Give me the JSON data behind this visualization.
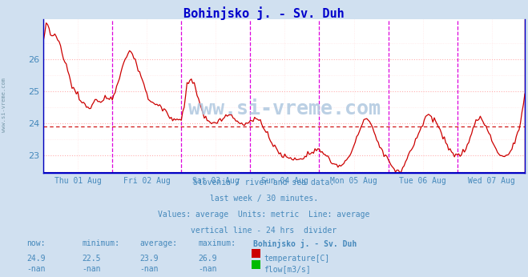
{
  "title": "Bohinjsko j. - Sv. Duh",
  "title_color": "#0000cc",
  "bg_color": "#d0e0f0",
  "plot_bg_color": "#ffffff",
  "grid_color_major": "#ffb0b0",
  "grid_color_minor": "#ffe0e0",
  "line_color": "#cc0000",
  "average_value": 23.9,
  "average_line_color": "#cc0000",
  "y_min": 22.45,
  "y_max": 27.25,
  "y_ticks": [
    23,
    24,
    25,
    26
  ],
  "xlabel_color": "#4488bb",
  "footer_color": "#4488bb",
  "watermark": "www.si-vreme.com",
  "footer_lines": [
    "Slovenia / river and sea data.",
    "last week / 30 minutes.",
    "Values: average  Units: metric  Line: average",
    "vertical line - 24 hrs  divider"
  ],
  "stats_headers": [
    "now:",
    "minimum:",
    "average:",
    "maximum:",
    "Bohinjsko j. - Sv. Duh"
  ],
  "stats_temp": [
    "24.9",
    "22.5",
    "23.9",
    "26.9"
  ],
  "stats_flow": [
    "-nan",
    "-nan",
    "-nan",
    "-nan"
  ],
  "temp_label": "temperature[C]",
  "flow_label": "flow[m3/s]",
  "temp_color": "#cc0000",
  "flow_color": "#00bb00",
  "x_tick_labels": [
    "Thu 01 Aug",
    "Fri 02 Aug",
    "Sat 03 Aug",
    "Sun 04 Aug",
    "Mon 05 Aug",
    "Tue 06 Aug",
    "Wed 07 Aug"
  ],
  "n_points": 336,
  "vline_color": "#dd00dd",
  "spine_color": "#0000cc",
  "keypoints": [
    [
      0,
      26.5
    ],
    [
      2,
      27.1
    ],
    [
      4,
      26.9
    ],
    [
      6,
      26.7
    ],
    [
      8,
      26.8
    ],
    [
      10,
      26.6
    ],
    [
      12,
      26.4
    ],
    [
      14,
      26.0
    ],
    [
      16,
      25.8
    ],
    [
      18,
      25.5
    ],
    [
      20,
      25.2
    ],
    [
      22,
      25.0
    ],
    [
      24,
      24.9
    ],
    [
      26,
      24.7
    ],
    [
      28,
      24.6
    ],
    [
      30,
      24.5
    ],
    [
      32,
      24.5
    ],
    [
      34,
      24.6
    ],
    [
      36,
      24.7
    ],
    [
      38,
      24.7
    ],
    [
      40,
      24.7
    ],
    [
      42,
      24.8
    ],
    [
      44,
      24.8
    ],
    [
      46,
      24.8
    ],
    [
      48,
      24.8
    ],
    [
      50,
      25.0
    ],
    [
      52,
      25.3
    ],
    [
      54,
      25.6
    ],
    [
      56,
      25.9
    ],
    [
      58,
      26.1
    ],
    [
      60,
      26.3
    ],
    [
      62,
      26.2
    ],
    [
      64,
      26.0
    ],
    [
      66,
      25.7
    ],
    [
      68,
      25.5
    ],
    [
      70,
      25.2
    ],
    [
      72,
      24.9
    ],
    [
      74,
      24.7
    ],
    [
      76,
      24.7
    ],
    [
      78,
      24.6
    ],
    [
      80,
      24.6
    ],
    [
      82,
      24.5
    ],
    [
      84,
      24.4
    ],
    [
      86,
      24.3
    ],
    [
      88,
      24.2
    ],
    [
      90,
      24.1
    ],
    [
      92,
      24.1
    ],
    [
      94,
      24.1
    ],
    [
      96,
      24.1
    ],
    [
      98,
      24.5
    ],
    [
      100,
      25.2
    ],
    [
      102,
      25.4
    ],
    [
      104,
      25.3
    ],
    [
      106,
      25.1
    ],
    [
      108,
      24.7
    ],
    [
      110,
      24.4
    ],
    [
      112,
      24.2
    ],
    [
      114,
      24.1
    ],
    [
      116,
      24.0
    ],
    [
      118,
      24.0
    ],
    [
      120,
      24.0
    ],
    [
      122,
      24.1
    ],
    [
      124,
      24.1
    ],
    [
      126,
      24.2
    ],
    [
      128,
      24.2
    ],
    [
      130,
      24.3
    ],
    [
      132,
      24.2
    ],
    [
      134,
      24.1
    ],
    [
      136,
      24.0
    ],
    [
      138,
      24.0
    ],
    [
      140,
      24.0
    ],
    [
      142,
      24.0
    ],
    [
      144,
      24.0
    ],
    [
      146,
      24.1
    ],
    [
      148,
      24.2
    ],
    [
      150,
      24.1
    ],
    [
      152,
      24.0
    ],
    [
      154,
      23.8
    ],
    [
      156,
      23.7
    ],
    [
      158,
      23.5
    ],
    [
      160,
      23.3
    ],
    [
      162,
      23.2
    ],
    [
      164,
      23.1
    ],
    [
      166,
      23.0
    ],
    [
      168,
      23.0
    ],
    [
      170,
      22.9
    ],
    [
      172,
      22.9
    ],
    [
      174,
      22.9
    ],
    [
      176,
      22.9
    ],
    [
      178,
      22.9
    ],
    [
      180,
      22.9
    ],
    [
      182,
      23.0
    ],
    [
      184,
      23.1
    ],
    [
      186,
      23.1
    ],
    [
      188,
      23.1
    ],
    [
      190,
      23.2
    ],
    [
      192,
      23.2
    ],
    [
      194,
      23.1
    ],
    [
      196,
      23.0
    ],
    [
      198,
      22.9
    ],
    [
      200,
      22.8
    ],
    [
      202,
      22.7
    ],
    [
      204,
      22.7
    ],
    [
      206,
      22.7
    ],
    [
      208,
      22.7
    ],
    [
      210,
      22.8
    ],
    [
      212,
      22.9
    ],
    [
      214,
      23.1
    ],
    [
      216,
      23.3
    ],
    [
      218,
      23.5
    ],
    [
      220,
      23.8
    ],
    [
      222,
      24.0
    ],
    [
      224,
      24.2
    ],
    [
      226,
      24.1
    ],
    [
      228,
      24.0
    ],
    [
      230,
      23.8
    ],
    [
      232,
      23.5
    ],
    [
      234,
      23.3
    ],
    [
      236,
      23.1
    ],
    [
      238,
      23.0
    ],
    [
      240,
      22.9
    ],
    [
      242,
      22.7
    ],
    [
      244,
      22.6
    ],
    [
      246,
      22.5
    ],
    [
      248,
      22.5
    ],
    [
      250,
      22.6
    ],
    [
      252,
      22.8
    ],
    [
      254,
      23.0
    ],
    [
      256,
      23.2
    ],
    [
      258,
      23.4
    ],
    [
      260,
      23.6
    ],
    [
      262,
      23.8
    ],
    [
      264,
      24.0
    ],
    [
      266,
      24.2
    ],
    [
      268,
      24.3
    ],
    [
      270,
      24.2
    ],
    [
      272,
      24.1
    ],
    [
      274,
      24.0
    ],
    [
      276,
      23.8
    ],
    [
      278,
      23.6
    ],
    [
      280,
      23.4
    ],
    [
      282,
      23.2
    ],
    [
      284,
      23.1
    ],
    [
      286,
      23.0
    ],
    [
      288,
      23.0
    ],
    [
      290,
      23.0
    ],
    [
      292,
      23.1
    ],
    [
      294,
      23.2
    ],
    [
      296,
      23.4
    ],
    [
      298,
      23.7
    ],
    [
      300,
      24.0
    ],
    [
      302,
      24.1
    ],
    [
      304,
      24.2
    ],
    [
      306,
      24.1
    ],
    [
      308,
      23.9
    ],
    [
      310,
      23.7
    ],
    [
      312,
      23.5
    ],
    [
      314,
      23.3
    ],
    [
      316,
      23.1
    ],
    [
      318,
      23.0
    ],
    [
      320,
      23.0
    ],
    [
      322,
      23.0
    ],
    [
      324,
      23.1
    ],
    [
      326,
      23.2
    ],
    [
      328,
      23.4
    ],
    [
      330,
      23.7
    ],
    [
      332,
      24.0
    ],
    [
      333,
      24.4
    ],
    [
      334,
      24.7
    ],
    [
      335,
      24.9
    ]
  ]
}
